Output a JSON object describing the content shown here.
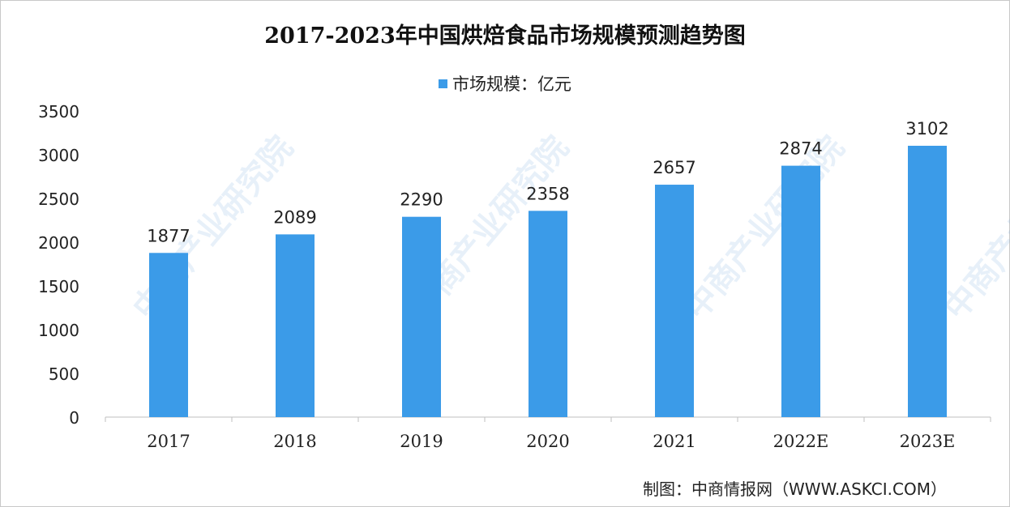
{
  "chart_data": {
    "type": "bar",
    "title": "2017-2023年中国烘焙食品市场规模预测趋势图",
    "categories": [
      "2017",
      "2018",
      "2019",
      "2020",
      "2021",
      "2022E",
      "2023E"
    ],
    "series": [
      {
        "name": "市场规模：亿元",
        "values": [
          1877,
          2089,
          2290,
          2358,
          2657,
          2874,
          3102
        ]
      }
    ],
    "ylim": [
      0,
      3500
    ],
    "yticks": [
      0,
      500,
      1000,
      1500,
      2000,
      2500,
      3000,
      3500
    ],
    "grid": false,
    "legend": "top-center",
    "bar_color": "#3b9be8",
    "data_labels": true
  },
  "source": "制图：中商情报网（WWW.ASKCI.COM）",
  "watermark": "中商产业研究院"
}
